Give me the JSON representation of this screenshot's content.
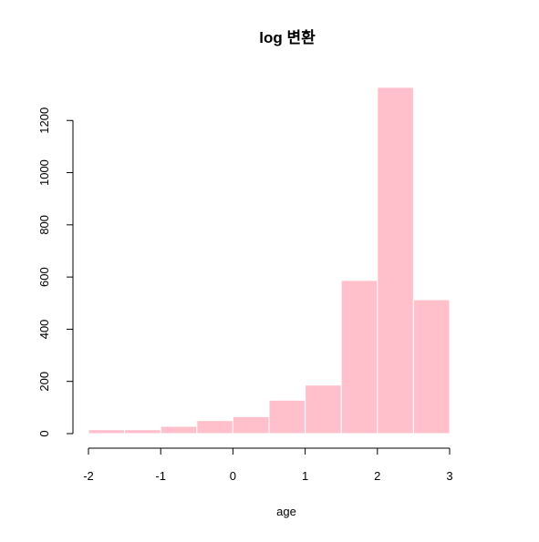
{
  "chart_data": {
    "type": "bar",
    "subtype": "histogram",
    "title": "log 변환",
    "xlabel": "age",
    "ylabel": "",
    "bins": [
      {
        "x0": -2.0,
        "x1": -1.5,
        "count": 15
      },
      {
        "x0": -1.5,
        "x1": -1.0,
        "count": 15
      },
      {
        "x0": -1.0,
        "x1": -0.5,
        "count": 28
      },
      {
        "x0": -0.5,
        "x1": 0.0,
        "count": 50
      },
      {
        "x0": 0.0,
        "x1": 0.5,
        "count": 65
      },
      {
        "x0": 0.5,
        "x1": 1.0,
        "count": 128
      },
      {
        "x0": 1.0,
        "x1": 1.5,
        "count": 186
      },
      {
        "x0": 1.5,
        "x1": 2.0,
        "count": 587
      },
      {
        "x0": 2.0,
        "x1": 2.5,
        "count": 1327
      },
      {
        "x0": 2.5,
        "x1": 3.0,
        "count": 513
      }
    ],
    "xlim": [
      -2,
      3
    ],
    "ylim": [
      0,
      1330
    ],
    "x_ticks": [
      "-2",
      "-1",
      "0",
      "1",
      "2",
      "3"
    ],
    "y_ticks": [
      "0",
      "200",
      "400",
      "600",
      "800",
      "1000",
      "1200"
    ],
    "grid": false,
    "legend": "none",
    "bar_color": "#FFC0CB",
    "bar_border_color": "#FFFFFF",
    "axis_color": "#000000"
  }
}
